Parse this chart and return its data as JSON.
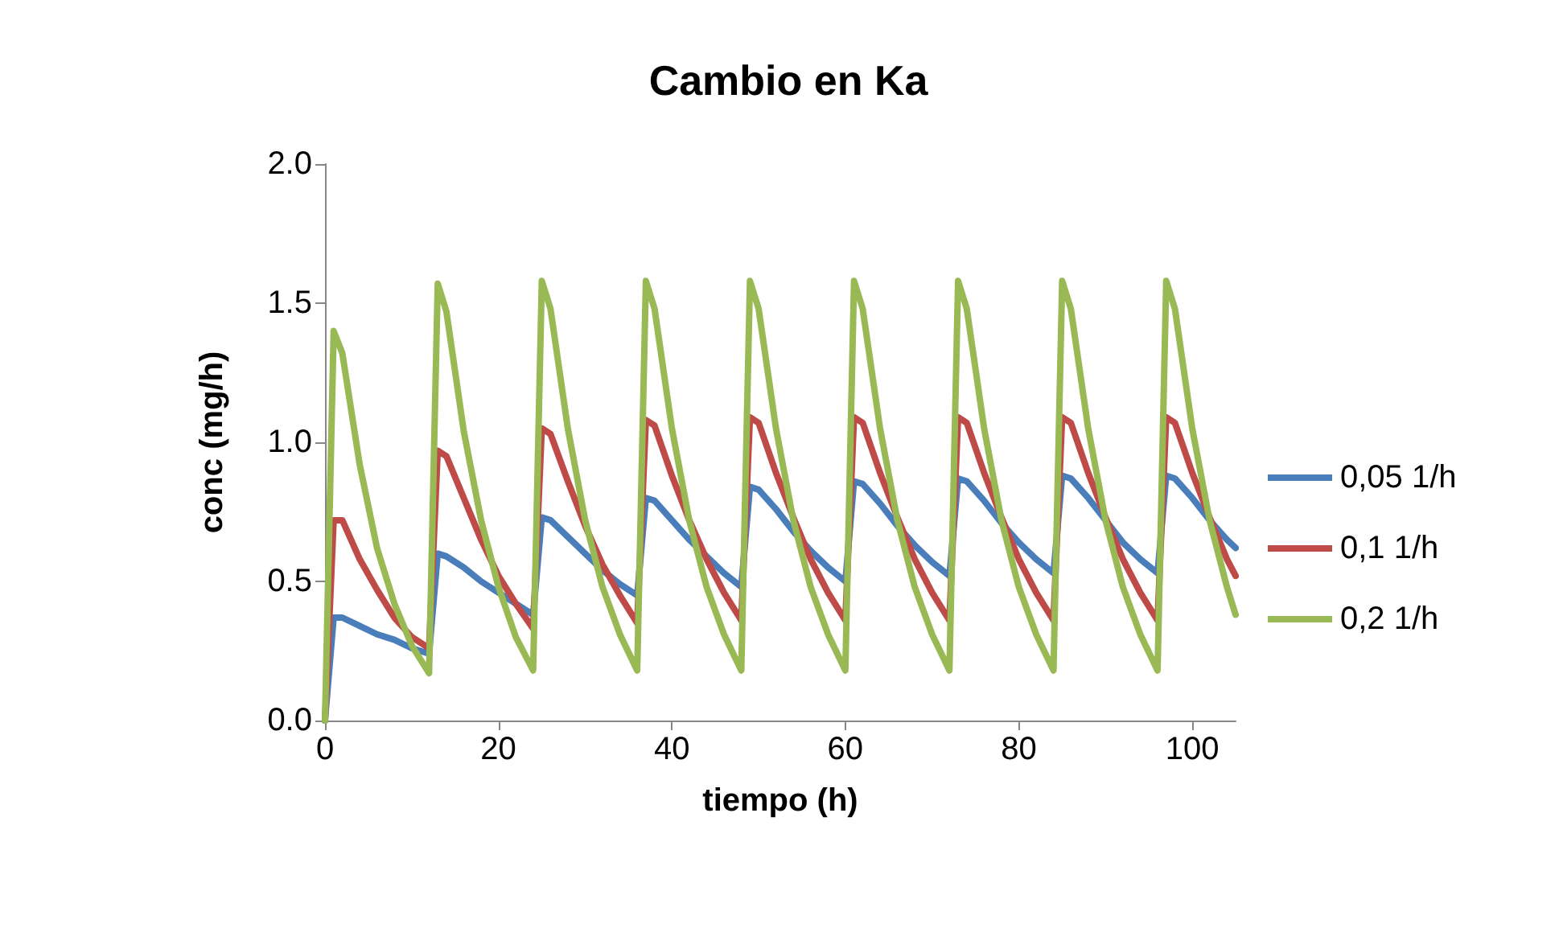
{
  "chart_data": {
    "type": "line",
    "title": "Cambio en Ka",
    "xlabel": "tiempo (h)",
    "ylabel": "conc (mg/h)",
    "x": [
      0,
      1,
      2,
      4,
      6,
      8,
      10,
      12,
      13,
      14,
      16,
      18,
      20,
      22,
      24,
      25,
      26,
      28,
      30,
      32,
      34,
      36,
      37,
      38,
      40,
      42,
      44,
      46,
      48,
      49,
      50,
      52,
      54,
      56,
      58,
      60,
      61,
      62,
      64,
      66,
      68,
      70,
      72,
      73,
      74,
      76,
      78,
      80,
      82,
      84,
      85,
      86,
      88,
      90,
      92,
      94,
      96,
      97,
      98,
      100,
      102,
      104,
      105
    ],
    "series": [
      {
        "name": "0,05 1/h",
        "color": "#4a7ebb",
        "values": [
          0,
          0.37,
          0.37,
          0.34,
          0.31,
          0.29,
          0.26,
          0.24,
          0.6,
          0.59,
          0.55,
          0.5,
          0.46,
          0.42,
          0.38,
          0.73,
          0.72,
          0.66,
          0.6,
          0.54,
          0.49,
          0.45,
          0.8,
          0.79,
          0.72,
          0.65,
          0.59,
          0.53,
          0.48,
          0.84,
          0.83,
          0.76,
          0.68,
          0.61,
          0.55,
          0.5,
          0.86,
          0.85,
          0.78,
          0.7,
          0.63,
          0.57,
          0.52,
          0.87,
          0.86,
          0.79,
          0.71,
          0.64,
          0.58,
          0.53,
          0.88,
          0.87,
          0.8,
          0.72,
          0.64,
          0.58,
          0.53,
          0.88,
          0.87,
          0.8,
          0.72,
          0.65,
          0.62
        ]
      },
      {
        "name": "0,1 1/h",
        "color": "#be4b48",
        "values": [
          0,
          0.72,
          0.72,
          0.58,
          0.47,
          0.37,
          0.3,
          0.26,
          0.97,
          0.95,
          0.8,
          0.65,
          0.52,
          0.42,
          0.33,
          1.05,
          1.03,
          0.86,
          0.7,
          0.56,
          0.45,
          0.35,
          1.08,
          1.06,
          0.88,
          0.72,
          0.58,
          0.46,
          0.36,
          1.09,
          1.07,
          0.89,
          0.73,
          0.58,
          0.46,
          0.36,
          1.09,
          1.07,
          0.89,
          0.73,
          0.58,
          0.46,
          0.36,
          1.09,
          1.07,
          0.89,
          0.73,
          0.58,
          0.46,
          0.36,
          1.09,
          1.07,
          0.89,
          0.73,
          0.58,
          0.46,
          0.36,
          1.09,
          1.07,
          0.89,
          0.73,
          0.58,
          0.52
        ]
      },
      {
        "name": "0,2 1/h",
        "color": "#98b954",
        "values": [
          0,
          1.4,
          1.32,
          0.92,
          0.62,
          0.42,
          0.27,
          0.17,
          1.57,
          1.47,
          1.04,
          0.72,
          0.48,
          0.3,
          0.18,
          1.58,
          1.48,
          1.05,
          0.72,
          0.48,
          0.31,
          0.18,
          1.58,
          1.48,
          1.05,
          0.72,
          0.48,
          0.31,
          0.18,
          1.58,
          1.48,
          1.05,
          0.72,
          0.48,
          0.31,
          0.18,
          1.58,
          1.48,
          1.05,
          0.72,
          0.48,
          0.31,
          0.18,
          1.58,
          1.48,
          1.05,
          0.72,
          0.48,
          0.31,
          0.18,
          1.58,
          1.48,
          1.05,
          0.72,
          0.48,
          0.31,
          0.18,
          1.58,
          1.48,
          1.05,
          0.72,
          0.48,
          0.38
        ]
      }
    ],
    "xlim": [
      0,
      105
    ],
    "xticks": [
      0,
      20,
      40,
      60,
      80,
      100
    ],
    "ylim": [
      0,
      2
    ],
    "yticks": [
      {
        "value": 0,
        "label": "0.0"
      },
      {
        "value": 0.5,
        "label": "0.5"
      },
      {
        "value": 1,
        "label": "1.0"
      },
      {
        "value": 1.5,
        "label": "1.5"
      },
      {
        "value": 2,
        "label": "2.0"
      }
    ],
    "grid": false,
    "legend": "right",
    "marker": "none",
    "line_style": "solid"
  }
}
